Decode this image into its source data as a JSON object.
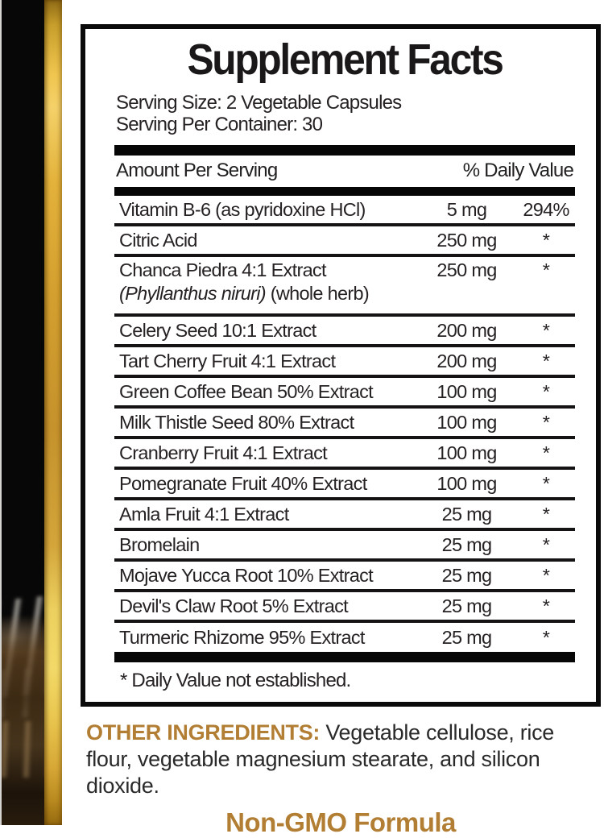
{
  "label": {
    "title": "Supplement Facts",
    "serving_size": "Serving Size: 2 Vegetable Capsules",
    "servings_per_container": "Serving Per Container: 30",
    "header": {
      "amount": "Amount Per Serving",
      "daily_value": "% Daily Value"
    },
    "rows": [
      {
        "name": "Vitamin B-6 (as pyridoxine HCl)",
        "amount": "5 mg",
        "dv": "294%"
      },
      {
        "name": "Citric Acid",
        "amount": "250 mg",
        "dv": "*"
      },
      {
        "name": "Chanca Piedra 4:1 Extract",
        "sub_italic": "(Phyllanthus niruri)",
        "sub_regular": " (whole herb)",
        "amount": "250 mg",
        "dv": "*"
      },
      {
        "name": "Celery Seed 10:1 Extract",
        "amount": "200 mg",
        "dv": "*"
      },
      {
        "name": "Tart Cherry Fruit 4:1 Extract",
        "amount": "200 mg",
        "dv": "*"
      },
      {
        "name": "Green Coffee Bean 50% Extract",
        "amount": "100 mg",
        "dv": "*"
      },
      {
        "name": "Milk Thistle Seed 80% Extract",
        "amount": "100 mg",
        "dv": "*"
      },
      {
        "name": "Cranberry Fruit 4:1 Extract",
        "amount": "100 mg",
        "dv": "*"
      },
      {
        "name": "Pomegranate Fruit 40% Extract",
        "amount": "100 mg",
        "dv": "*"
      },
      {
        "name": "Amla Fruit 4:1 Extract",
        "amount": "25 mg",
        "dv": "*"
      },
      {
        "name": "Bromelain",
        "amount": "25 mg",
        "dv": "*"
      },
      {
        "name": "Mojave Yucca Root 10% Extract",
        "amount": "25 mg",
        "dv": "*"
      },
      {
        "name": "Devil's Claw Root 5% Extract",
        "amount": "25 mg",
        "dv": "*"
      },
      {
        "name": "Turmeric Rhizome 95% Extract",
        "amount": "25 mg",
        "dv": "*"
      }
    ],
    "footnote": "* Daily Value not established.",
    "other_ingredients": {
      "label": "OTHER INGREDIENTS:",
      "text": " Vegetable cellulose, rice flour, vegetable magnesium stearate, and silicon dioxide."
    },
    "non_gmo": "Non-GMO Formula",
    "colors": {
      "accent_gold_text": "#b27e33",
      "gold_bar_bright": "#f0c54f",
      "gold_bar_pale": "#f2d968",
      "panel_border_black": "#0a0a0a",
      "ink_black": "#262223"
    }
  }
}
